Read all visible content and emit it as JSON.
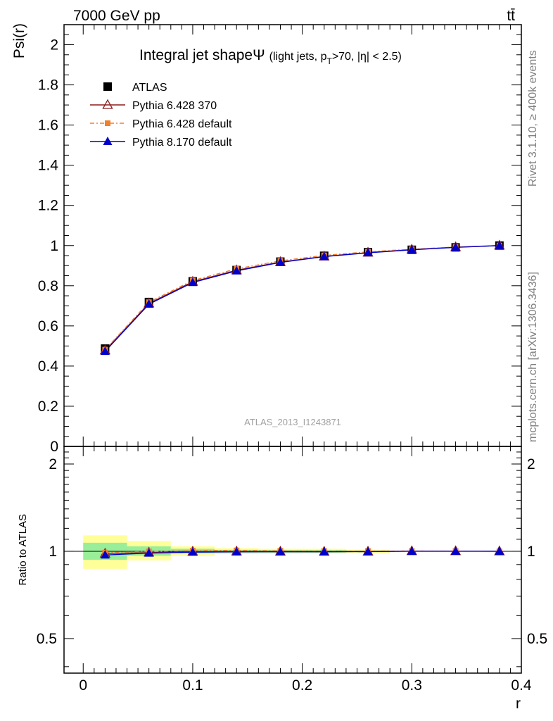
{
  "header": {
    "left": "7000 GeV pp",
    "right": "tt̄"
  },
  "side": {
    "rivet": "Rivet 3.1.10, ≥ 400k events",
    "mcplots": "mcplots.cern.ch [arXiv:1306.3436]"
  },
  "chart_data": [
    {
      "type": "line",
      "title": "Integral jet shapeΨ",
      "subtitle": "(light jets, p",
      "subtitle_sub": "T",
      "subtitle_tail": ">70, |η| < 2.5)",
      "watermark": "ATLAS_2013_I1243871",
      "ylabel": "Psi(r)",
      "xlabel": "r",
      "xlim": [
        -0.0175,
        0.4
      ],
      "ylim": [
        0,
        2.1
      ],
      "x_ticks": [
        0,
        0.1,
        0.2,
        0.3,
        0.4
      ],
      "x_tick_labels": [
        "0",
        "0.1",
        "0.2",
        "0.3",
        "0.4"
      ],
      "y_ticks": [
        0,
        0.2,
        0.4,
        0.6,
        0.8,
        1,
        1.2,
        1.4,
        1.6,
        1.8,
        2
      ],
      "y_tick_labels": [
        "0",
        "0.2",
        "0.4",
        "0.6",
        "0.8",
        "1",
        "1.2",
        "1.4",
        "1.6",
        "1.8",
        "2"
      ],
      "legend_position": "top-left",
      "x": [
        0.02,
        0.06,
        0.1,
        0.14,
        0.18,
        0.22,
        0.26,
        0.3,
        0.34,
        0.38
      ],
      "series": [
        {
          "name": "ATLAS",
          "color": "#000000",
          "marker": "square",
          "values": [
            0.487,
            0.719,
            0.822,
            0.878,
            0.92,
            0.949,
            0.967,
            0.979,
            0.991,
            1.0
          ]
        },
        {
          "name": "Pythia 6.428 370",
          "color": "#8b1a1a",
          "marker": "triangle-open",
          "dash": "solid",
          "values": [
            0.478,
            0.712,
            0.82,
            0.877,
            0.918,
            0.946,
            0.965,
            0.98,
            0.992,
            1.0
          ]
        },
        {
          "name": "Pythia 6.428 default",
          "color": "#f08030",
          "marker": "square-small",
          "dash": "dashdot",
          "values": [
            0.482,
            0.718,
            0.826,
            0.884,
            0.924,
            0.951,
            0.969,
            0.982,
            0.993,
            1.0
          ]
        },
        {
          "name": "Pythia 8.170 default",
          "color": "#0000cc",
          "marker": "triangle",
          "dash": "solid",
          "values": [
            0.473,
            0.708,
            0.816,
            0.874,
            0.916,
            0.945,
            0.964,
            0.979,
            0.991,
            1.0
          ]
        }
      ]
    },
    {
      "type": "line",
      "ylabel": "Ratio to ATLAS",
      "xlim": [
        -0.0175,
        0.4
      ],
      "ylim": [
        0.38,
        2.3
      ],
      "y_scale": "log",
      "y_ticks": [
        0.5,
        1,
        2
      ],
      "y_tick_labels": [
        "0.5",
        "1",
        "2"
      ],
      "x_ticks": [
        0,
        0.1,
        0.2,
        0.3,
        0.4
      ],
      "bins": [
        [
          0,
          0.04
        ],
        [
          0.04,
          0.08
        ],
        [
          0.08,
          0.12
        ],
        [
          0.12,
          0.16
        ],
        [
          0.16,
          0.2
        ],
        [
          0.2,
          0.24
        ],
        [
          0.24,
          0.28
        ],
        [
          0.28,
          0.32
        ],
        [
          0.32,
          0.36
        ],
        [
          0.36,
          0.4
        ]
      ],
      "band_stat_low": [
        0.935,
        0.965,
        0.985,
        0.99,
        0.99,
        0.99,
        0.993,
        0.998,
        0.999,
        1.0
      ],
      "band_stat_high": [
        1.07,
        1.04,
        1.02,
        1.012,
        1.01,
        1.01,
        1.006,
        1.002,
        1.001,
        1.0
      ],
      "band_total_low": [
        0.87,
        0.93,
        0.963,
        0.978,
        0.98,
        0.983,
        0.988,
        0.998,
        0.999,
        1.0
      ],
      "band_total_high": [
        1.135,
        1.085,
        1.04,
        1.025,
        1.02,
        1.02,
        1.012,
        1.002,
        1.001,
        1.0
      ],
      "x": [
        0.02,
        0.06,
        0.1,
        0.14,
        0.18,
        0.22,
        0.26,
        0.3,
        0.34,
        0.38
      ],
      "series": [
        {
          "name": "Pythia 6.428 370",
          "color": "#8b1a1a",
          "values": [
            0.982,
            0.99,
            0.998,
            0.999,
            0.998,
            0.997,
            0.998,
            1.001,
            1.001,
            1.0
          ]
        },
        {
          "name": "Pythia 6.428 default",
          "color": "#f08030",
          "values": [
            0.99,
            0.999,
            1.005,
            1.007,
            1.004,
            1.002,
            1.002,
            1.003,
            1.002,
            1.0
          ]
        },
        {
          "name": "Pythia 8.170 default",
          "color": "#0000cc",
          "values": [
            0.971,
            0.985,
            0.993,
            0.995,
            0.996,
            0.996,
            0.997,
            1.0,
            1.0,
            1.0
          ]
        }
      ]
    }
  ]
}
